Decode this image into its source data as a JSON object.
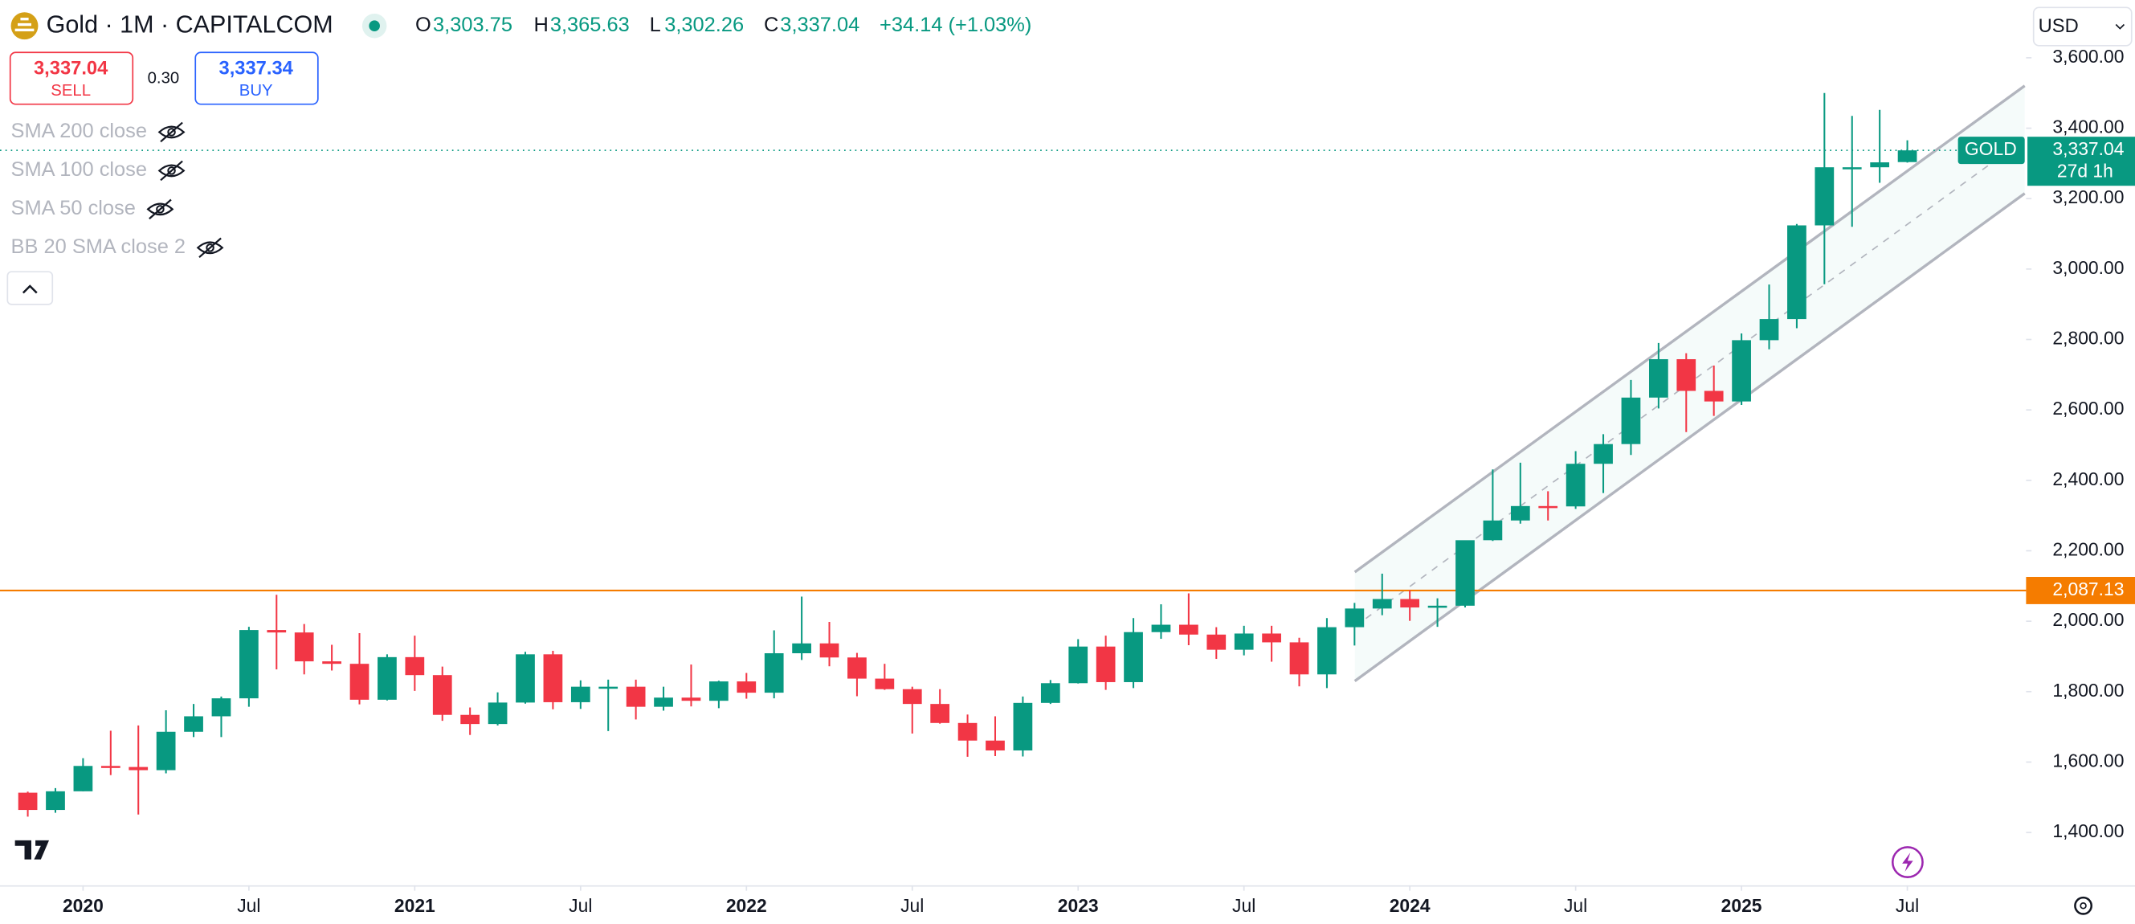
{
  "header": {
    "title": "Gold · 1M · CAPITALCOM",
    "ohlc": [
      {
        "key": "O",
        "value": "3,303.75"
      },
      {
        "key": "H",
        "value": "3,365.63"
      },
      {
        "key": "L",
        "value": "3,302.26"
      },
      {
        "key": "C",
        "value": "3,337.04"
      }
    ],
    "change": "+34.14 (+1.03%)",
    "sell": {
      "price": "3,337.04",
      "label": "SELL"
    },
    "spread": "0.30",
    "buy": {
      "price": "3,337.34",
      "label": "BUY"
    },
    "currency": "USD"
  },
  "indicators": [
    "SMA 200 close",
    "SMA 100 close",
    "SMA 50 close",
    "BB 20 SMA close 2"
  ],
  "chart_data": {
    "type": "candlestick",
    "x": [
      "2019-11",
      "2019-12",
      "2020-01",
      "2020-02",
      "2020-03",
      "2020-04",
      "2020-05",
      "2020-06",
      "2020-07",
      "2020-08",
      "2020-09",
      "2020-10",
      "2020-11",
      "2020-12",
      "2021-01",
      "2021-02",
      "2021-03",
      "2021-04",
      "2021-05",
      "2021-06",
      "2021-07",
      "2021-08",
      "2021-09",
      "2021-10",
      "2021-11",
      "2021-12",
      "2022-01",
      "2022-02",
      "2022-03",
      "2022-04",
      "2022-05",
      "2022-06",
      "2022-07",
      "2022-08",
      "2022-09",
      "2022-10",
      "2022-11",
      "2022-12",
      "2023-01",
      "2023-02",
      "2023-03",
      "2023-04",
      "2023-05",
      "2023-06",
      "2023-07",
      "2023-08",
      "2023-09",
      "2023-10",
      "2023-11",
      "2023-12",
      "2024-01",
      "2024-02",
      "2024-03",
      "2024-04",
      "2024-05",
      "2024-06",
      "2024-07",
      "2024-08",
      "2024-09",
      "2024-10",
      "2024-11",
      "2024-12",
      "2025-01",
      "2025-02",
      "2025-03",
      "2025-04",
      "2025-05",
      "2025-06",
      "2025-07"
    ],
    "open": [
      1513,
      1464,
      1517,
      1589,
      1586,
      1577,
      1686,
      1730,
      1781,
      1975,
      1968,
      1886,
      1879,
      1777,
      1898,
      1847,
      1734,
      1708,
      1769,
      1906,
      1770,
      1814,
      1814,
      1757,
      1783,
      1774,
      1829,
      1797,
      1909,
      1937,
      1897,
      1837,
      1807,
      1765,
      1711,
      1661,
      1633,
      1768,
      1824,
      1928,
      1827,
      1969,
      1990,
      1962,
      1919,
      1965,
      1940,
      1849,
      1983,
      2036,
      2063,
      2039,
      2044,
      2230,
      2286,
      2327,
      2326,
      2447,
      2503,
      2635,
      2744,
      2654,
      2624,
      2798,
      2858,
      3124,
      3289,
      3289,
      3303.75
    ],
    "high": [
      1516,
      1526,
      1611,
      1689,
      1704,
      1747,
      1765,
      1786,
      1984,
      2075,
      1992,
      1933,
      1966,
      1906,
      1959,
      1871,
      1755,
      1798,
      1913,
      1916,
      1832,
      1834,
      1834,
      1814,
      1877,
      1831,
      1853,
      1974,
      2070,
      1998,
      1910,
      1879,
      1814,
      1807,
      1735,
      1730,
      1786,
      1833,
      1949,
      1959,
      2009,
      2048,
      2079,
      1983,
      1987,
      1987,
      1953,
      2009,
      2052,
      2135,
      2088,
      2065,
      2223,
      2431,
      2450,
      2369,
      2483,
      2531,
      2685,
      2790,
      2761,
      2726,
      2817,
      2956,
      3128,
      3500,
      3435,
      3452,
      3365.63
    ],
    "low": [
      1445,
      1456,
      1517,
      1563,
      1451,
      1568,
      1671,
      1671,
      1757,
      1863,
      1849,
      1860,
      1764,
      1775,
      1802,
      1717,
      1677,
      1704,
      1766,
      1750,
      1751,
      1688,
      1721,
      1746,
      1758,
      1753,
      1780,
      1781,
      1890,
      1872,
      1787,
      1805,
      1681,
      1709,
      1615,
      1617,
      1616,
      1765,
      1823,
      1805,
      1810,
      1950,
      1932,
      1893,
      1903,
      1885,
      1815,
      1810,
      1931,
      2017,
      2001,
      1984,
      2039,
      2228,
      2277,
      2286,
      2319,
      2364,
      2472,
      2604,
      2537,
      2583,
      2614,
      2772,
      2832,
      2957,
      3120,
      3245,
      3302.26
    ],
    "close": [
      1464,
      1517,
      1589,
      1585,
      1577,
      1686,
      1730,
      1781,
      1975,
      1968,
      1886,
      1879,
      1777,
      1898,
      1847,
      1734,
      1708,
      1769,
      1906,
      1770,
      1814,
      1814,
      1757,
      1783,
      1774,
      1829,
      1797,
      1909,
      1937,
      1897,
      1837,
      1807,
      1765,
      1711,
      1661,
      1633,
      1768,
      1824,
      1928,
      1827,
      1969,
      1990,
      1962,
      1919,
      1965,
      1940,
      1849,
      1983,
      2036,
      2063,
      2039,
      2044,
      2230,
      2286,
      2327,
      2326,
      2447,
      2503,
      2635,
      2744,
      2654,
      2624,
      2798,
      2858,
      3124,
      3289,
      3289,
      3303,
      3337.04
    ],
    "up_color": "#089981",
    "down_color": "#f23645",
    "ylim": [
      1250,
      3764
    ],
    "yticks": [
      {
        "value": 1400,
        "label": "1,400.00"
      },
      {
        "value": 1600,
        "label": "1,600.00"
      },
      {
        "value": 1800,
        "label": "1,800.00"
      },
      {
        "value": 2000,
        "label": "2,000.00"
      },
      {
        "value": 2200,
        "label": "2,200.00"
      },
      {
        "value": 2400,
        "label": "2,400.00"
      },
      {
        "value": 2600,
        "label": "2,600.00"
      },
      {
        "value": 2800,
        "label": "2,800.00"
      },
      {
        "value": 3000,
        "label": "3,000.00"
      },
      {
        "value": 3200,
        "label": "3,200.00"
      },
      {
        "value": 3400,
        "label": "3,400.00"
      },
      {
        "value": 3600,
        "label": "3,600.00"
      }
    ],
    "xticks": [
      {
        "value": "2020-01",
        "label": "2020"
      },
      {
        "value": "2020-07",
        "label": "Jul"
      },
      {
        "value": "2021-01",
        "label": "2021"
      },
      {
        "value": "2021-07",
        "label": "Jul"
      },
      {
        "value": "2022-01",
        "label": "2022"
      },
      {
        "value": "2022-07",
        "label": "Jul"
      },
      {
        "value": "2023-01",
        "label": "2023"
      },
      {
        "value": "2023-07",
        "label": "Jul"
      },
      {
        "value": "2024-01",
        "label": "2024"
      },
      {
        "value": "2024-07",
        "label": "Jul"
      },
      {
        "value": "2025-01",
        "label": "2025"
      },
      {
        "value": "2025-07",
        "label": "Jul"
      }
    ],
    "hline": {
      "value": 2087.13,
      "label": "2,087.13",
      "color": "#f57c00"
    },
    "last_price": {
      "value": 3337.04,
      "label": "3,337.04",
      "symbol": "GOLD",
      "countdown": "27d 1h"
    }
  }
}
